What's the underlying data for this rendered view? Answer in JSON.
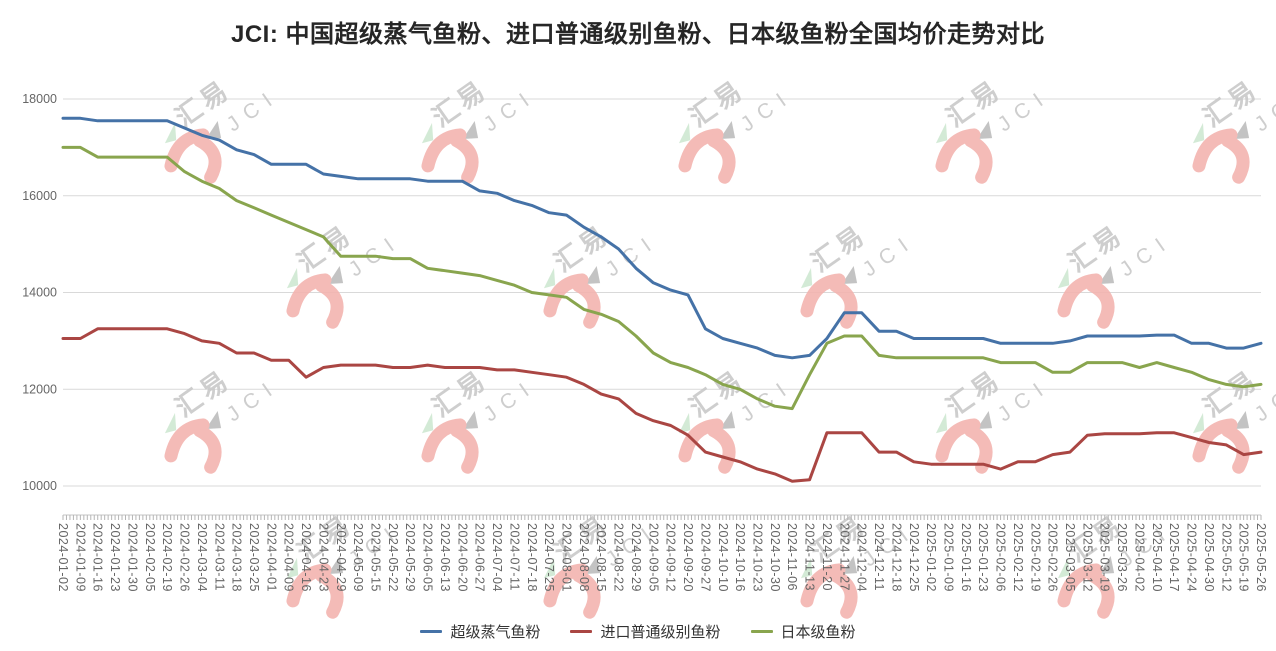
{
  "title": "JCI: 中国超级蒸气鱼粉、进口普通级别鱼粉、日本级鱼粉全国均价走势对比",
  "watermark": {
    "text_cn": "汇易",
    "text_en": "JCI"
  },
  "chart_data": {
    "type": "line",
    "title": "JCI: 中国超级蒸气鱼粉、进口普通级别鱼粉、日本级鱼粉全国均价走势对比",
    "xlabel": "",
    "ylabel": "",
    "ylim": [
      10000,
      18000
    ],
    "y_ticks": [
      18000,
      16000,
      14000,
      12000,
      10000
    ],
    "grid": "horizontal",
    "legend_position": "bottom",
    "categories": [
      "2024-01-02",
      "2024-01-09",
      "2024-01-16",
      "2024-01-23",
      "2024-01-30",
      "2024-02-05",
      "2024-02-19",
      "2024-02-26",
      "2024-03-04",
      "2024-03-11",
      "2024-03-18",
      "2024-03-25",
      "2024-04-01",
      "2024-04-09",
      "2024-04-16",
      "2024-04-23",
      "2024-04-29",
      "2024-05-09",
      "2024-05-15",
      "2024-05-22",
      "2024-05-29",
      "2024-06-05",
      "2024-06-13",
      "2024-06-20",
      "2024-06-27",
      "2024-07-04",
      "2024-07-11",
      "2024-07-18",
      "2024-07-25",
      "2024-08-01",
      "2024-08-08",
      "2024-08-15",
      "2024-08-22",
      "2024-08-29",
      "2024-09-05",
      "2024-09-12",
      "2024-09-20",
      "2024-09-27",
      "2024-10-10",
      "2024-10-16",
      "2024-10-23",
      "2024-10-30",
      "2024-11-06",
      "2024-11-13",
      "2024-11-20",
      "2024-11-27",
      "2024-12-04",
      "2024-12-11",
      "2024-12-18",
      "2024-12-25",
      "2025-01-02",
      "2025-01-09",
      "2025-01-16",
      "2025-01-23",
      "2025-02-06",
      "2025-02-12",
      "2025-02-19",
      "2025-02-26",
      "2025-03-05",
      "2025-03-12",
      "2025-03-19",
      "2025-03-26",
      "2025-04-02",
      "2025-04-10",
      "2025-04-17",
      "2025-04-24",
      "2025-04-30",
      "2025-05-12",
      "2025-05-19",
      "2025-05-26"
    ],
    "series": [
      {
        "name": "超级蒸气鱼粉",
        "color": "#4572A7",
        "values": [
          17600,
          17600,
          17550,
          17550,
          17550,
          17550,
          17550,
          17400,
          17250,
          17150,
          16950,
          16850,
          16650,
          16650,
          16650,
          16450,
          16400,
          16350,
          16350,
          16350,
          16350,
          16300,
          16300,
          16300,
          16100,
          16050,
          15900,
          15800,
          15650,
          15600,
          15350,
          15150,
          14900,
          14500,
          14200,
          14050,
          13950,
          13250,
          13050,
          12950,
          12850,
          12700,
          12650,
          12700,
          13050,
          13580,
          13580,
          13200,
          13200,
          13050,
          13050,
          13050,
          13050,
          13050,
          12950,
          12950,
          12950,
          12950,
          13000,
          13100,
          13100,
          13100,
          13100,
          13120,
          13120,
          12950,
          12950,
          12850,
          12850,
          12950
        ]
      },
      {
        "name": "进口普通级别鱼粉",
        "color": "#AA4643",
        "values": [
          13050,
          13050,
          13250,
          13250,
          13250,
          13250,
          13250,
          13150,
          13000,
          12950,
          12750,
          12750,
          12600,
          12600,
          12250,
          12450,
          12500,
          12500,
          12500,
          12450,
          12450,
          12500,
          12450,
          12450,
          12450,
          12400,
          12400,
          12350,
          12300,
          12250,
          12100,
          11900,
          11800,
          11500,
          11350,
          11250,
          11050,
          10700,
          10600,
          10500,
          10350,
          10250,
          10100,
          10130,
          11100,
          11100,
          11100,
          10700,
          10700,
          10500,
          10450,
          10450,
          10450,
          10450,
          10350,
          10500,
          10500,
          10650,
          10700,
          11050,
          11080,
          11080,
          11080,
          11100,
          11100,
          11000,
          10900,
          10850,
          10650,
          10700
        ]
      },
      {
        "name": "日本级鱼粉",
        "color": "#89A54E",
        "values": [
          17000,
          17000,
          16800,
          16800,
          16800,
          16800,
          16800,
          16500,
          16300,
          16150,
          15900,
          15750,
          15600,
          15450,
          15300,
          15150,
          14750,
          14750,
          14750,
          14700,
          14700,
          14500,
          14450,
          14400,
          14350,
          14250,
          14150,
          14000,
          13950,
          13900,
          13650,
          13550,
          13400,
          13100,
          12750,
          12550,
          12450,
          12300,
          12100,
          12000,
          11800,
          11650,
          11600,
          12300,
          12950,
          13100,
          13100,
          12700,
          12650,
          12650,
          12650,
          12650,
          12650,
          12650,
          12550,
          12550,
          12550,
          12350,
          12350,
          12550,
          12550,
          12550,
          12450,
          12550,
          12450,
          12350,
          12200,
          12100,
          12050,
          12100
        ]
      }
    ]
  },
  "colors": {
    "gridline": "#d9d9d9",
    "axis_line": "#c5c5c5",
    "tick": "#b5b5b5",
    "axis_text": "#666666",
    "watermark_gray": "#c9c9c9",
    "watermark_pink": "#f3b4af",
    "watermark_green": "#cfe8d2",
    "watermark_dark_tri": "#bdbdbd"
  }
}
